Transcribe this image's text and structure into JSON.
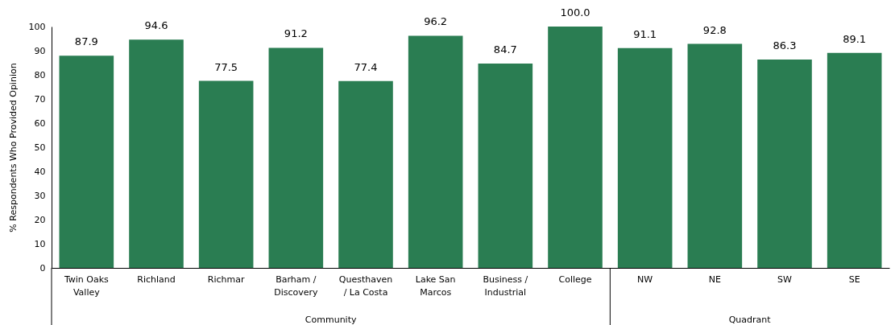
{
  "chart_data": {
    "type": "bar",
    "ylabel": "% Respondents Who Provided Opinion",
    "categories": [
      "Twin Oaks Valley",
      "Richland",
      "Richmar",
      "Barham / Discovery",
      "Questhaven / La Costa",
      "Lake San Marcos",
      "Business / Industrial",
      "College",
      "NW",
      "NE",
      "SW",
      "SE"
    ],
    "values": [
      87.9,
      94.6,
      77.5,
      91.2,
      77.4,
      96.2,
      84.7,
      100.0,
      91.1,
      92.8,
      86.3,
      89.1
    ],
    "value_labels": [
      "87.9",
      "94.6",
      "77.5",
      "91.2",
      "77.4",
      "96.2",
      "84.7",
      "100.0",
      "91.1",
      "92.8",
      "86.3",
      "89.1"
    ],
    "color": "#2a7d52",
    "ylim": [
      0,
      100
    ],
    "yticks": [
      0,
      10,
      20,
      30,
      40,
      50,
      60,
      70,
      80,
      90,
      100
    ],
    "grid": false,
    "annotations": [
      "Community",
      "Quadrant"
    ]
  }
}
